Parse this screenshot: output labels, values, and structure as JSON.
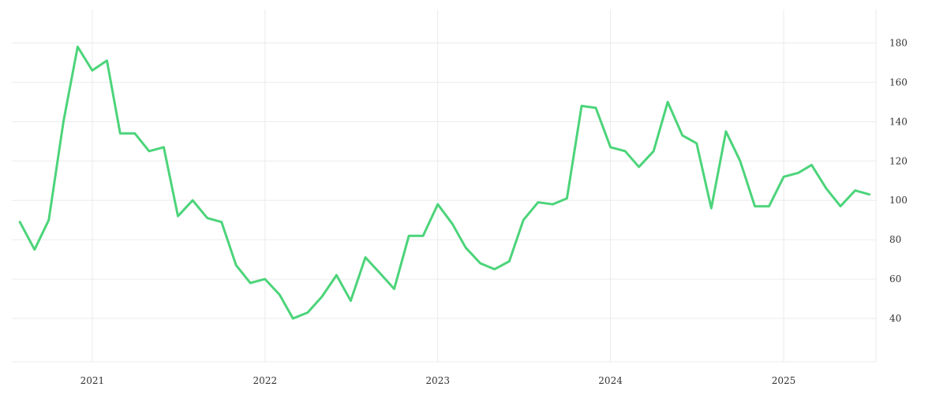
{
  "colors": {
    "series": "#4cd47a",
    "grid": "#ebebeb",
    "text": "#333333",
    "background": "#ffffff"
  },
  "chart_data": {
    "type": "line",
    "title": "",
    "xlabel": "",
    "ylabel": "",
    "ylim": [
      18,
      197
    ],
    "xlim": [
      "2020-07-15",
      "2025-07-15"
    ],
    "grid": true,
    "legend": "none",
    "y_axis_position": "right",
    "x_ticks": [
      {
        "date": "2021-01-01",
        "label": "2021"
      },
      {
        "date": "2022-01-01",
        "label": "2022"
      },
      {
        "date": "2023-01-01",
        "label": "2023"
      },
      {
        "date": "2024-01-01",
        "label": "2024"
      },
      {
        "date": "2025-01-01",
        "label": "2025"
      }
    ],
    "y_ticks": [
      40,
      60,
      80,
      100,
      120,
      140,
      160,
      180
    ],
    "series": [
      {
        "x": [
          "2020-08-01",
          "2020-09-01",
          "2020-10-01",
          "2020-11-01",
          "2020-12-01",
          "2021-01-01",
          "2021-02-01",
          "2021-03-01",
          "2021-04-01",
          "2021-05-01",
          "2021-06-01",
          "2021-07-01",
          "2021-08-01",
          "2021-09-01",
          "2021-10-01",
          "2021-11-01",
          "2021-12-01",
          "2022-01-01",
          "2022-02-01",
          "2022-03-01",
          "2022-04-01",
          "2022-05-01",
          "2022-06-01",
          "2022-07-01",
          "2022-08-01",
          "2022-09-01",
          "2022-10-01",
          "2022-11-01",
          "2022-12-01",
          "2023-01-01",
          "2023-02-01",
          "2023-03-01",
          "2023-04-01",
          "2023-05-01",
          "2023-06-01",
          "2023-07-01",
          "2023-08-01",
          "2023-09-01",
          "2023-10-01",
          "2023-11-01",
          "2023-12-01",
          "2024-01-01",
          "2024-02-01",
          "2024-03-01",
          "2024-04-01",
          "2024-05-01",
          "2024-06-01",
          "2024-07-01",
          "2024-08-01",
          "2024-09-01",
          "2024-10-01",
          "2024-11-01",
          "2024-12-01",
          "2025-01-01",
          "2025-02-01",
          "2025-03-01",
          "2025-04-01",
          "2025-05-01",
          "2025-06-01",
          "2025-07-01"
        ],
        "values": [
          89,
          75,
          90,
          140,
          178,
          166,
          171,
          134,
          134,
          125,
          127,
          92,
          100,
          91,
          89,
          67,
          58,
          60,
          52,
          40,
          43,
          51,
          62,
          49,
          71,
          63,
          55,
          82,
          82,
          98,
          88,
          76,
          68,
          65,
          69,
          90,
          99,
          98,
          101,
          148,
          147,
          127,
          125,
          117,
          125,
          150,
          133,
          129,
          96,
          135,
          120,
          97,
          97,
          112,
          114,
          118,
          106,
          97,
          105,
          103
        ]
      }
    ]
  }
}
